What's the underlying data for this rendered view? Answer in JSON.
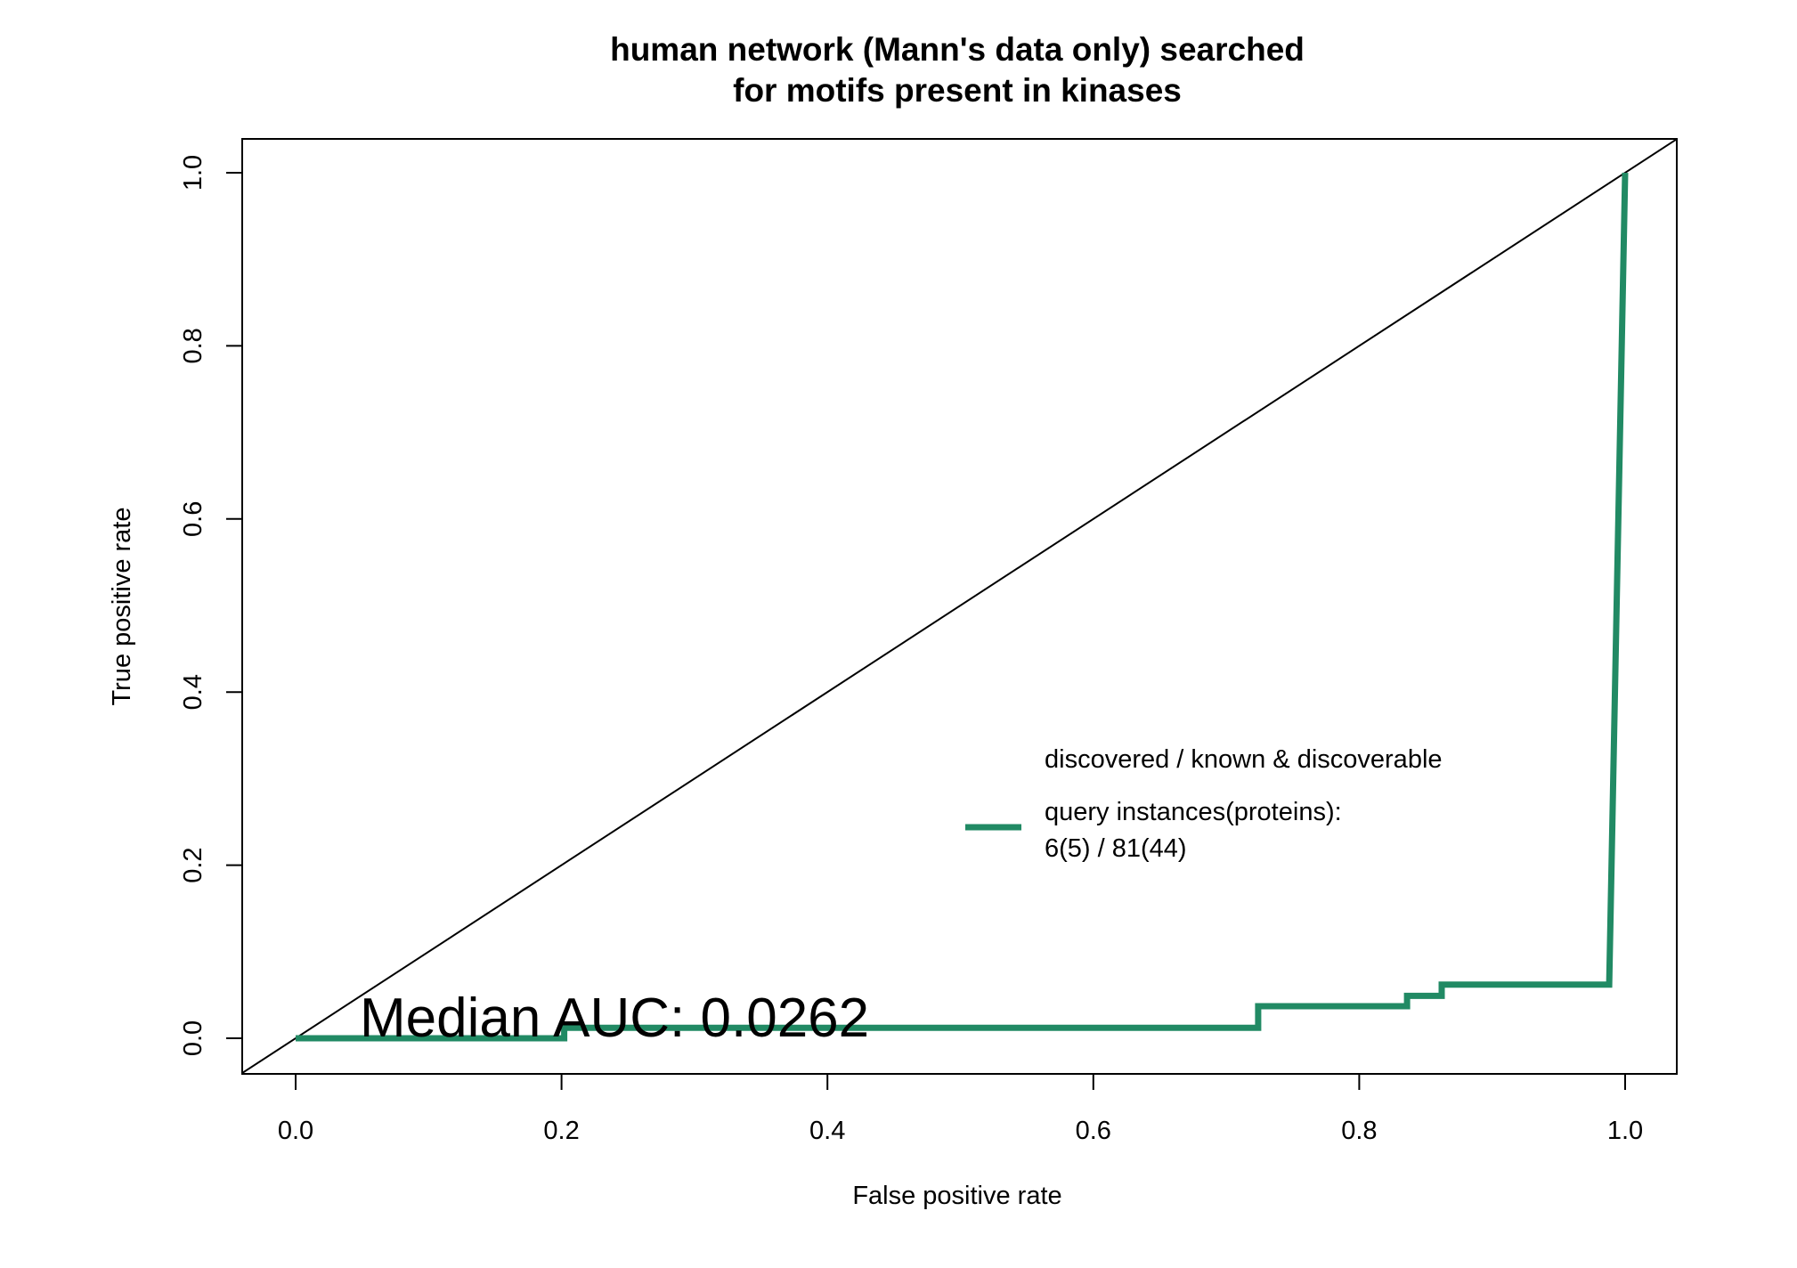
{
  "chart_data": {
    "type": "line",
    "title": [
      "human network (Mann's data only) searched",
      "for motifs present in kinases"
    ],
    "xlabel": "False positive rate",
    "ylabel": "True positive rate",
    "xlim": [
      0.0,
      1.0
    ],
    "ylim": [
      0.0,
      1.0
    ],
    "xticks": [
      "0.0",
      "0.2",
      "0.4",
      "0.6",
      "0.8",
      "1.0"
    ],
    "yticks": [
      "0.0",
      "0.2",
      "0.4",
      "0.6",
      "0.8",
      "1.0"
    ],
    "grid": false,
    "legend_position": "center-right",
    "legend": {
      "header": "discovered / known & discoverable",
      "entry_line1": "query instances(proteins):",
      "entry_line2": "6(5) / 81(44)"
    },
    "annotation": "Median AUC: 0.0262",
    "reference_line": {
      "x": [
        0.0,
        1.0
      ],
      "y": [
        0.0,
        1.0
      ],
      "color": "#000000"
    },
    "series": [
      {
        "color": "#218a64",
        "x": [
          0.0,
          0.202,
          0.202,
          0.724,
          0.724,
          0.836,
          0.836,
          0.862,
          0.862,
          0.988,
          1.0
        ],
        "y": [
          0.0,
          0.0,
          0.012,
          0.012,
          0.037,
          0.037,
          0.049,
          0.049,
          0.062,
          0.062,
          1.0
        ]
      }
    ]
  }
}
